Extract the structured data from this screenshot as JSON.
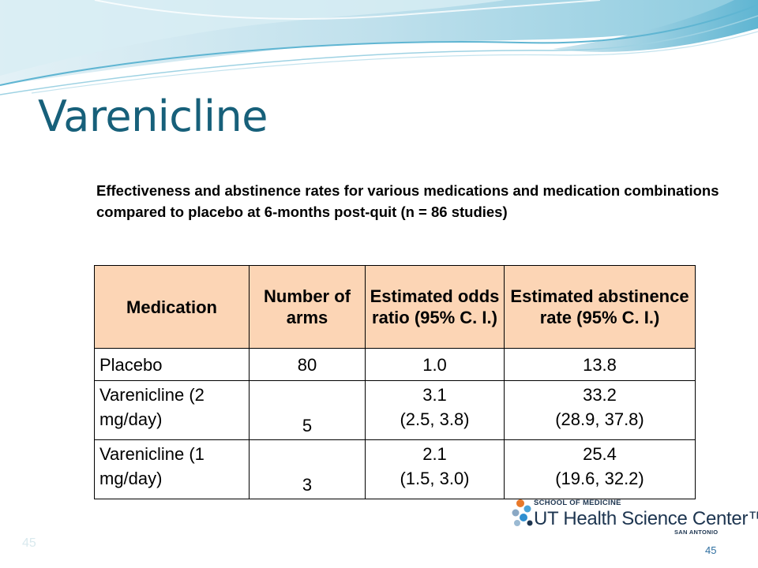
{
  "slide": {
    "title": "Varenicline",
    "subtitle": "Effectiveness and abstinence rates for various medications and medication combinations compared to placebo at 6-months post-quit (n = 86 studies)",
    "page_number_left": "45",
    "page_number_right": "45"
  },
  "table": {
    "headers": [
      "Medication",
      "Number of arms",
      "Estimated odds ratio (95% C. I.)",
      "Estimated abstinence rate (95% C. I.)"
    ],
    "rows": [
      {
        "medication": "Placebo",
        "arms": "80",
        "odds_ratio": "1.0",
        "odds_ci": "",
        "abstinence_rate": "13.8",
        "abstinence_ci": ""
      },
      {
        "medication": "Varenicline (2 mg/day)",
        "arms": "5",
        "odds_ratio": "3.1",
        "odds_ci": "(2.5, 3.8)",
        "abstinence_rate": "33.2",
        "abstinence_ci": "(28.9, 37.8)"
      },
      {
        "medication": "Varenicline (1 mg/day)",
        "arms": "3",
        "odds_ratio": "2.1",
        "odds_ci": "(1.5, 3.0)",
        "abstinence_rate": "25.4",
        "abstinence_ci": "(19.6, 32.2)"
      }
    ]
  },
  "logo": {
    "line1": "SCHOOL OF MEDICINE",
    "line2": "UT Health Science Center™",
    "line3": "SAN ANTONIO"
  },
  "colors": {
    "title": "#17607a",
    "header_fill": "#fcd5b5",
    "logo_text": "#1d3550"
  }
}
